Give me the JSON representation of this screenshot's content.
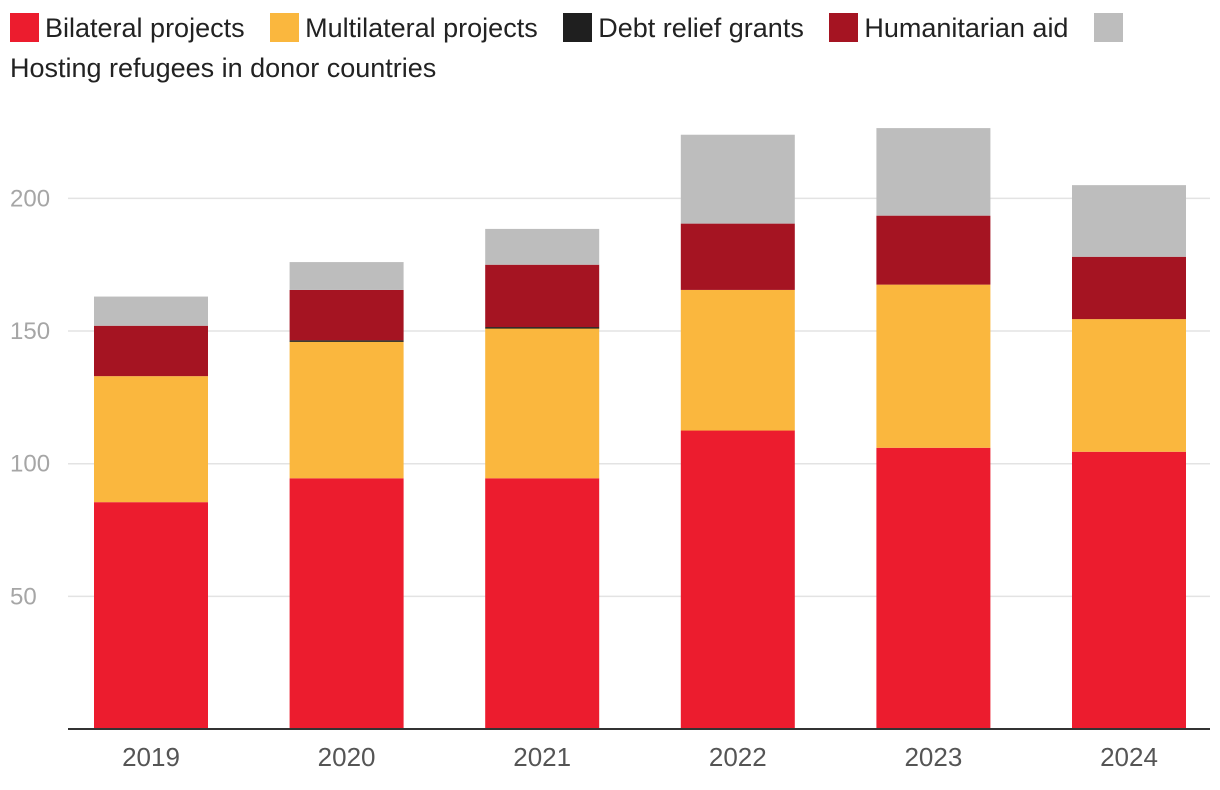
{
  "chart_data": {
    "type": "bar",
    "stacked": true,
    "categories": [
      "2019",
      "2020",
      "2021",
      "2022",
      "2023",
      "2024"
    ],
    "series": [
      {
        "name": "Bilateral projects",
        "color": "#ec1c2e",
        "values": [
          85.5,
          94.5,
          94.5,
          112.5,
          106,
          104.5
        ]
      },
      {
        "name": "Multilateral projects",
        "color": "#fab73e",
        "values": [
          47.5,
          51.5,
          56.5,
          53,
          61.5,
          50
        ]
      },
      {
        "name": "Debt relief grants",
        "color": "#1f1f1f",
        "values": [
          0,
          0.5,
          0.5,
          0,
          0,
          0
        ]
      },
      {
        "name": "Humanitarian aid",
        "color": "#a51422",
        "values": [
          19,
          19,
          23.5,
          25,
          26,
          23.5
        ]
      },
      {
        "name": "Hosting refugees in donor countries",
        "color": "#bdbdbd",
        "values": [
          11,
          10.5,
          13.5,
          33.5,
          33,
          27
        ]
      }
    ],
    "ylim": [
      0,
      230
    ],
    "yticks": [
      50,
      100,
      150,
      200
    ],
    "grid": true,
    "legend_position": "top"
  }
}
